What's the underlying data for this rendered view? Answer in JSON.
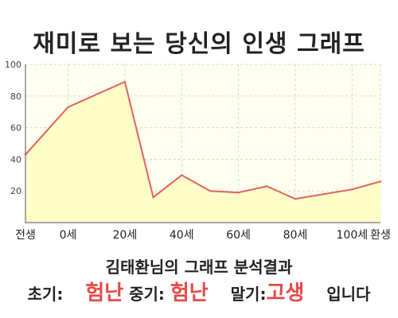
{
  "title": "재미로 보는 당신의 인생 그래프",
  "chart_data": {
    "type": "area",
    "x_tick_labels": [
      "전생",
      "0세",
      "20세",
      "40세",
      "60세",
      "80세",
      "100세",
      "환생"
    ],
    "x": [
      -15,
      0,
      20,
      30,
      40,
      50,
      60,
      70,
      80,
      90,
      100,
      110
    ],
    "values": [
      43,
      73,
      89,
      16,
      30,
      20,
      19,
      23,
      15,
      18,
      21,
      26
    ],
    "ylim": [
      0,
      100
    ],
    "y_ticks": [
      20,
      40,
      60,
      80,
      100
    ],
    "grid": true,
    "colors": {
      "line": "#e06262",
      "fill": "#fffdc8",
      "plot_bg": "#fffff0",
      "grid": "#d8d8d8"
    }
  },
  "footer": {
    "name_line": "김태환님의 그래프 분석결과",
    "early_label": "초기:",
    "early_value": "험난",
    "mid_label": "중기:",
    "mid_value": "험난",
    "late_label": "말기:",
    "late_value": "고생",
    "suffix": "입니다"
  }
}
